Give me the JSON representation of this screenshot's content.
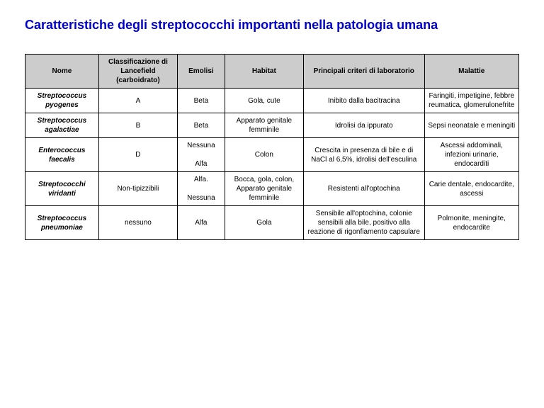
{
  "title": "Caratteristiche degli streptococchi importanti nella patologia umana",
  "table": {
    "columns": [
      "Nome",
      "Classificazione di Lancefield (carboidrato)",
      "Emolisi",
      "Habitat",
      "Principali criteri di laboratorio",
      "Malattie"
    ],
    "rows": [
      [
        "Streptococcus pyogenes",
        "A",
        "Beta",
        "Gola, cute",
        "Inibito dalla bacitracina",
        "Faringiti, impetigine, febbre reumatica, glomerulonefrite"
      ],
      [
        "Streptococcus agalactiae",
        "B",
        "Beta",
        "Apparato genitale femminile",
        "Idrolisi da ippurato",
        "Sepsi neonatale e meningiti"
      ],
      [
        "Enterococcus faecalis",
        "D",
        "Nessuna\n\nAlfa",
        "Colon",
        "Crescita in presenza di bile e di NaCl al 6,5%, idrolisi dell'esculina",
        "Ascessi addominali, infezioni urinarie, endocarditi"
      ],
      [
        "Streptococchi viridanti",
        "Non-tipizzibili",
        "Alfa.\n\nNessuna",
        "Bocca, gola, colon, Apparato genitale femminile",
        "Resistenti all'optochina",
        "Carie dentale, endocardite, ascessi"
      ],
      [
        "Streptococcus pneumoniae",
        "nessuno",
        "Alfa",
        "Gola",
        "Sensibile all'optochina, colonie sensibili alla bile, positivo alla reazione di rigonfiamento capsulare",
        "Polmonite, meningite, endocardite"
      ]
    ]
  },
  "styling": {
    "title_color": "#0000cc",
    "title_fontsize": 18,
    "header_bg": "#cccccc",
    "border_color": "#000000",
    "cell_fontsize": 10,
    "background": "#ffffff"
  }
}
